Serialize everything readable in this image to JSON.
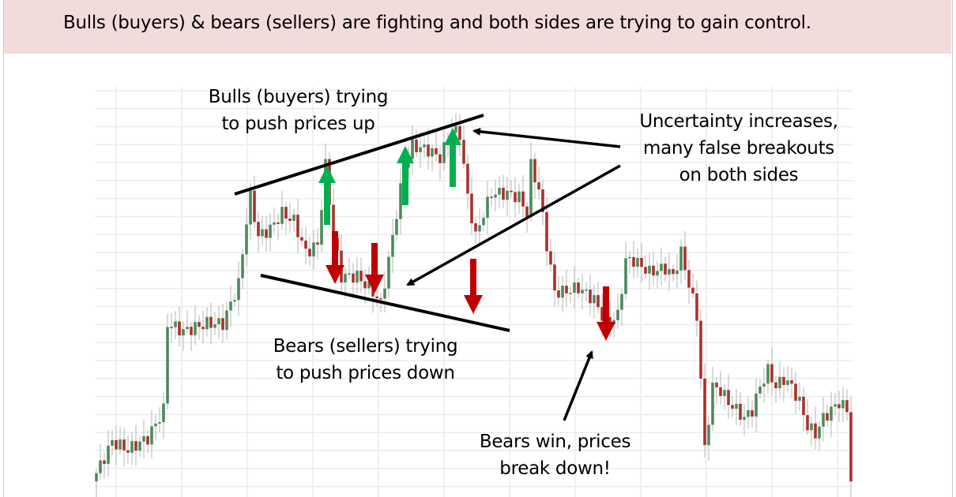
{
  "header": {
    "title": "Bulls (buyers) & bears (sellers) are fighting and both sides are trying to gain control."
  },
  "annotations": {
    "bulls": [
      "Bulls (buyers) trying",
      "to push prices up"
    ],
    "bears": [
      "Bears (sellers) trying",
      "to push prices down"
    ],
    "uncertainty": [
      "Uncertainty increases,",
      "many false breakouts",
      "on both sides"
    ],
    "breakdown": [
      "Bears win, prices",
      "break down!"
    ]
  },
  "colors": {
    "bullish": "#4e8a5c",
    "bearish": "#a8322c",
    "up_arrow": "#00b050",
    "down_arrow": "#c00000",
    "header_bg": "#f2dcdb",
    "grid": "#ececec"
  },
  "chart_data": {
    "type": "candlestick",
    "title": "",
    "xlabel": "",
    "ylabel": "",
    "grid": true,
    "axes_labels_shown": false,
    "closes": [
      [
        0,
        5.8
      ],
      [
        4,
        13.5
      ],
      [
        8,
        11.5
      ],
      [
        13,
        14.4
      ],
      [
        17,
        21.2
      ],
      [
        18,
        42.3
      ],
      [
        22,
        40.4
      ],
      [
        28,
        42.3
      ],
      [
        32,
        42.3
      ],
      [
        36,
        51.9
      ],
      [
        38,
        67.3
      ],
      [
        39,
        73.1
      ],
      [
        41,
        63.5
      ],
      [
        44,
        65.4
      ],
      [
        47,
        69.2
      ],
      [
        50,
        67.3
      ],
      [
        53,
        59.6
      ],
      [
        56,
        61.5
      ],
      [
        58,
        80.8
      ],
      [
        60,
        63.5
      ],
      [
        62,
        53.8
      ],
      [
        66,
        53.8
      ],
      [
        70,
        50
      ],
      [
        72,
        47.1
      ],
      [
        74,
        57.7
      ],
      [
        76,
        69.2
      ],
      [
        78,
        80.8
      ],
      [
        80,
        85.6
      ],
      [
        84,
        84.6
      ],
      [
        87,
        82.7
      ],
      [
        90,
        89.4
      ],
      [
        92,
        88.5
      ],
      [
        94,
        73.1
      ],
      [
        96,
        63.5
      ],
      [
        98,
        69.2
      ],
      [
        100,
        74
      ],
      [
        104,
        74
      ],
      [
        107,
        73.1
      ],
      [
        109,
        69.2
      ],
      [
        110,
        80.8
      ],
      [
        112,
        75
      ],
      [
        114,
        61.5
      ],
      [
        116,
        50
      ],
      [
        118,
        50
      ],
      [
        122,
        51
      ],
      [
        126,
        48.1
      ],
      [
        129,
        42.3
      ],
      [
        132,
        44.2
      ],
      [
        134,
        57.7
      ],
      [
        136,
        57.7
      ],
      [
        140,
        54.8
      ],
      [
        144,
        55.8
      ],
      [
        146,
        53.8
      ],
      [
        148,
        59.6
      ],
      [
        150,
        51.9
      ],
      [
        152,
        44.2
      ],
      [
        153,
        28.8
      ],
      [
        154,
        11.5
      ],
      [
        156,
        26.9
      ],
      [
        158,
        26
      ],
      [
        160,
        23.1
      ],
      [
        162,
        21.2
      ],
      [
        164,
        19.2
      ],
      [
        166,
        21.2
      ],
      [
        168,
        26.9
      ],
      [
        170,
        30.8
      ],
      [
        172,
        26.9
      ],
      [
        174,
        28.8
      ],
      [
        176,
        26.9
      ],
      [
        178,
        23.1
      ],
      [
        180,
        17.3
      ],
      [
        182,
        15.4
      ],
      [
        184,
        19.2
      ],
      [
        186,
        21.2
      ],
      [
        188,
        23.1
      ],
      [
        190,
        21.2
      ],
      [
        191,
        3.8
      ]
    ],
    "trendlines": [
      "upper resistance rising",
      "lower support falling"
    ],
    "arrows": {
      "green_up": 3,
      "red_down": 4
    }
  }
}
